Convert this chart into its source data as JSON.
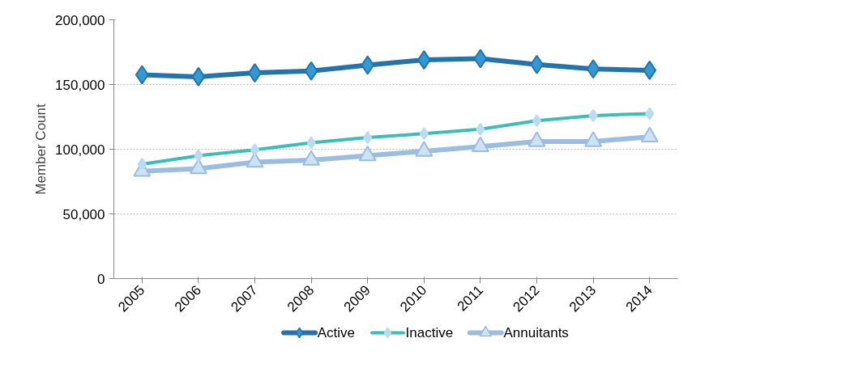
{
  "chart_data": {
    "type": "line",
    "ylabel": "Member Count",
    "categories": [
      "2005",
      "2006",
      "2007",
      "2008",
      "2009",
      "2010",
      "2011",
      "2012",
      "2013",
      "2014"
    ],
    "series": [
      {
        "name": "Active",
        "color": "#2474aa",
        "marker": "diamond",
        "values": [
          157500,
          156000,
          159000,
          160500,
          165000,
          169000,
          170000,
          165500,
          162000,
          161000
        ]
      },
      {
        "name": "Inactive",
        "color": "#3dbdb5",
        "marker": "diamond",
        "values": [
          88500,
          95000,
          99500,
          105000,
          109000,
          112000,
          115500,
          122000,
          126000,
          127500
        ]
      },
      {
        "name": "Annuitants",
        "color": "#9dbde0",
        "marker": "triangle",
        "values": [
          83000,
          85000,
          90000,
          91500,
          95000,
          98500,
          102000,
          106000,
          106000,
          109500
        ]
      }
    ],
    "ylim": [
      0,
      200000
    ],
    "yticks": [
      {
        "value": 0,
        "label": "0"
      },
      {
        "value": 50000,
        "label": "50,000"
      },
      {
        "value": 100000,
        "label": "100,000"
      },
      {
        "value": 150000,
        "label": "150,000"
      },
      {
        "value": 200000,
        "label": "200,000"
      }
    ],
    "grid": "y",
    "legend": "bottom"
  }
}
